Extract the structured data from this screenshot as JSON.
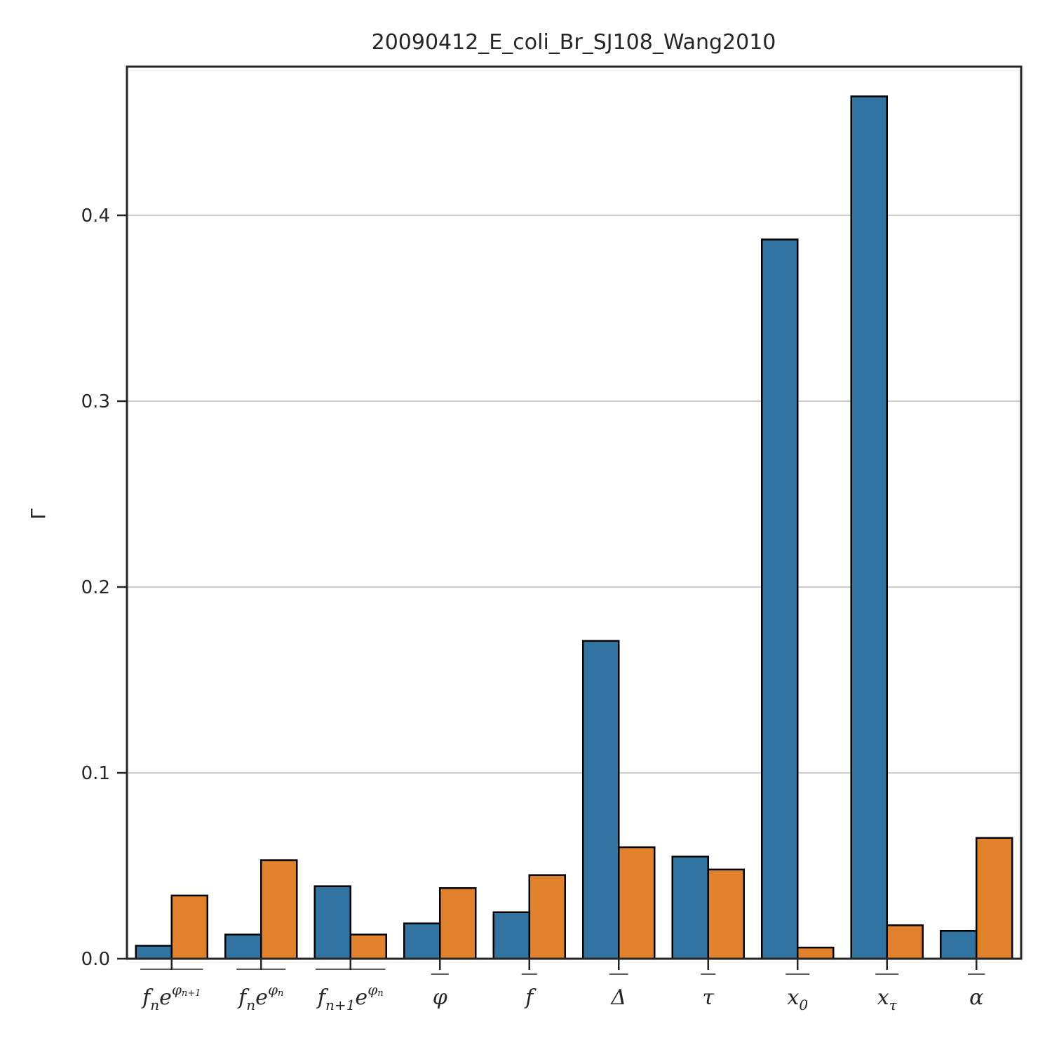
{
  "chart_data": {
    "type": "bar",
    "title": "20090412_E_coli_Br_SJ108_Wang2010",
    "xlabel": "",
    "ylabel": "Γ",
    "ylim": [
      0,
      0.48
    ],
    "yticks": [
      "0.0",
      "0.1",
      "0.2",
      "0.3",
      "0.4"
    ],
    "ytick_values": [
      0.0,
      0.1,
      0.2,
      0.3,
      0.4
    ],
    "grid": "horizontal",
    "legend": "none",
    "categories": [
      "f_n e^{φ_{n+1}}",
      "f_n e^{φ_n}",
      "f_{n+1} e^{φ_n}",
      "φ",
      "f",
      "Δ",
      "τ",
      "x_0",
      "x_τ",
      "α"
    ],
    "series": [
      {
        "color": "#3274a1",
        "values": [
          0.007,
          0.013,
          0.039,
          0.019,
          0.025,
          0.171,
          0.055,
          0.387,
          0.464,
          0.015
        ]
      },
      {
        "color": "#e1812c",
        "values": [
          0.034,
          0.053,
          0.013,
          0.038,
          0.045,
          0.06,
          0.048,
          0.006,
          0.018,
          0.065
        ]
      }
    ]
  }
}
